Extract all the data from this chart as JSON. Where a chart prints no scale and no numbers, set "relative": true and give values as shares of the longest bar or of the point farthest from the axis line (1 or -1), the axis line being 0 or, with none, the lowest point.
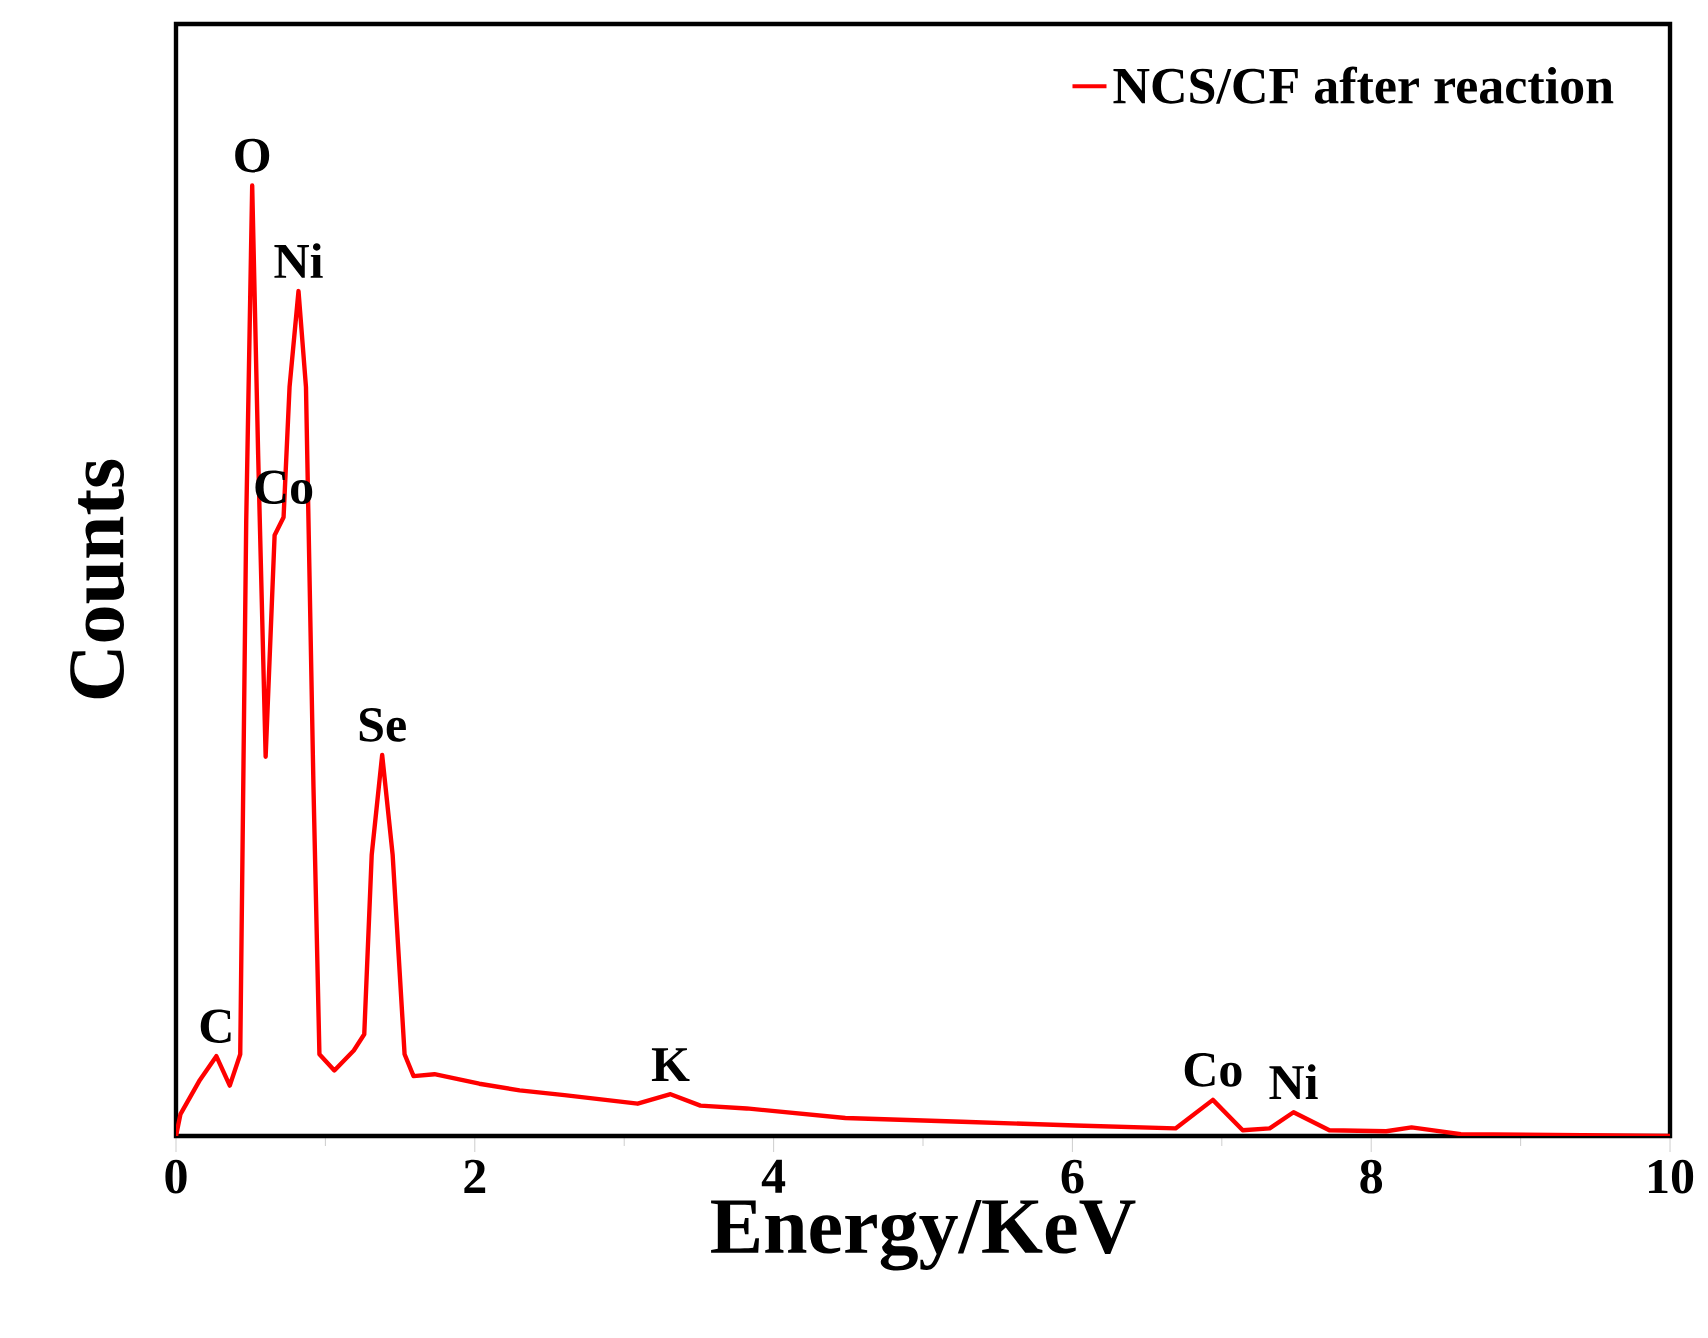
{
  "chart_data": {
    "type": "line",
    "xlabel": "Energy/KeV",
    "ylabel": "Counts",
    "relative": true,
    "xlim": [
      0,
      10
    ],
    "xticks": [
      0,
      2,
      4,
      6,
      8,
      10
    ],
    "legend": "top right",
    "line_style": "solid",
    "series": [
      {
        "name": "NCS/CF after reaction",
        "color": "#ff0000",
        "x": [
          0,
          0.03,
          0.16,
          0.27,
          0.36,
          0.43,
          0.47,
          0.51,
          0.55,
          0.6,
          0.66,
          0.72,
          0.76,
          0.82,
          0.87,
          0.92,
          0.96,
          1.06,
          1.19,
          1.26,
          1.31,
          1.38,
          1.45,
          1.53,
          1.59,
          1.73,
          2.03,
          2.3,
          2.6,
          3.09,
          3.31,
          3.51,
          3.82,
          4.48,
          5.26,
          6.02,
          6.69,
          6.94,
          7.14,
          7.32,
          7.48,
          7.72,
          8.1,
          8.27,
          8.6,
          10
        ],
        "values": [
          0,
          0.023,
          0.059,
          0.084,
          0.053,
          0.086,
          0.647,
          1.0,
          0.716,
          0.399,
          0.632,
          0.651,
          0.788,
          0.889,
          0.788,
          0.368,
          0.086,
          0.069,
          0.09,
          0.107,
          0.296,
          0.401,
          0.296,
          0.086,
          0.063,
          0.065,
          0.055,
          0.048,
          0.043,
          0.034,
          0.044,
          0.032,
          0.029,
          0.019,
          0.015,
          0.011,
          0.008,
          0.038,
          0.006,
          0.008,
          0.025,
          0.006,
          0.005,
          0.009,
          0.002,
          0
        ]
      }
    ],
    "annotations": [
      {
        "text": "O",
        "x": 0.51,
        "y": 1.0
      },
      {
        "text": "Ni",
        "x": 0.82,
        "y": 0.889
      },
      {
        "text": "Co",
        "x": 0.72,
        "y": 0.651
      },
      {
        "text": "Se",
        "x": 1.38,
        "y": 0.401
      },
      {
        "text": "C",
        "x": 0.27,
        "y": 0.084
      },
      {
        "text": "K",
        "x": 3.31,
        "y": 0.044
      },
      {
        "text": "Co",
        "x": 6.94,
        "y": 0.038
      },
      {
        "text": "Ni",
        "x": 7.48,
        "y": 0.025
      }
    ]
  }
}
